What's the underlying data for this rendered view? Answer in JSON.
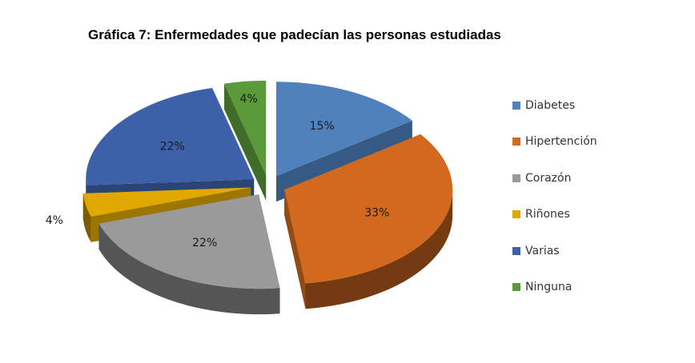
{
  "chart_data": {
    "type": "pie",
    "title": "Gráfica 7: Enfermedades que padecían las personas estudiadas",
    "categories": [
      "Diabetes",
      "Hipertención",
      "Corazón",
      "Riñones",
      "Varias",
      "Ninguna"
    ],
    "values": [
      15,
      33,
      22,
      4,
      22,
      4
    ],
    "value_labels": [
      "15%",
      "33%",
      "22%",
      "4%",
      "22%",
      "4%"
    ],
    "colors": [
      "#4f81bd",
      "#d2691e",
      "#9a9a9a",
      "#e0a800",
      "#3d61a8",
      "#5a9a3a"
    ],
    "legend_position": "right",
    "style": "3d-exploded"
  }
}
